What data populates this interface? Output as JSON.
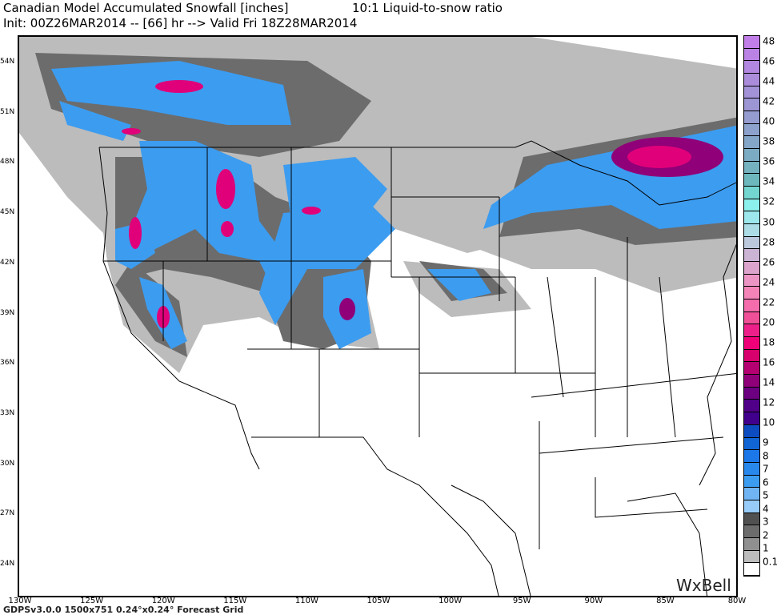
{
  "header": {
    "title": "Canadian Model Accumulated Snowfall [inches]",
    "ratio": "10:1 Liquid-to-snow ratio",
    "init_line": "Init: 00Z26MAR2014 -- [66] hr --> Valid Fri 18Z28MAR2014"
  },
  "axes": {
    "lat_labels": [
      "54N",
      "51N",
      "48N",
      "45N",
      "42N",
      "39N",
      "36N",
      "33N",
      "30N",
      "27N",
      "24N"
    ],
    "lon_labels": [
      "130W",
      "125W",
      "120W",
      "115W",
      "110W",
      "105W",
      "100W",
      "95W",
      "90W",
      "85W",
      "80W"
    ]
  },
  "footer": "GDPSv3.0.0  1500x751  0.24°x0.24°  Forecast Grid",
  "brand": "WxBell",
  "legend": {
    "levels": [
      "48",
      "46",
      "44",
      "42",
      "40",
      "38",
      "36",
      "34",
      "32",
      "30",
      "28",
      "26",
      "24",
      "22",
      "20",
      "18",
      "16",
      "14",
      "12",
      "10",
      "9",
      "8",
      "7",
      "6",
      "5",
      "4",
      "3",
      "2",
      "1",
      "0.1"
    ],
    "colors": [
      "#c27ee8",
      "#b982e4",
      "#b287df",
      "#ab8cdb",
      "#a492d8",
      "#9c96d4",
      "#949cd0",
      "#8ca2cc",
      "#84a6c8",
      "#7cacc4",
      "#74b2c0",
      "#6cb8bc",
      "#74d6d0",
      "#8cf0ec",
      "#9ce8ec",
      "#acdce6",
      "#bcc8dc",
      "#ccb4d4",
      "#dca4cc",
      "#ec94c4",
      "#f484b8",
      "#f46cac",
      "#f05098",
      "#ec2088",
      "#f00078",
      "#d8006c",
      "#b40070",
      "#900078",
      "#6c0080",
      "#500088",
      "#40008c",
      "#0c4cc0",
      "#1064d4",
      "#1c78e8",
      "#2888ec",
      "#3c9cf0",
      "#70b4f4",
      "#98ccf8",
      "#505050",
      "#6c6c6c",
      "#909090",
      "#bcbcbc",
      "#ffffff"
    ]
  }
}
